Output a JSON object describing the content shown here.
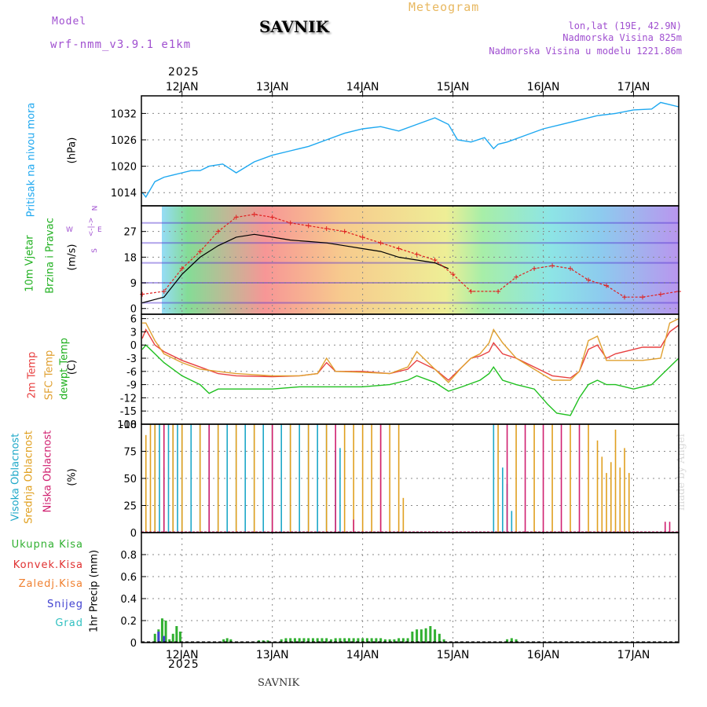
{
  "header": {
    "model_label": "Model",
    "model_name": "wrf-nmm_v3.9.1 e1km",
    "title": "SAVNIK",
    "meteogram_label": "Meteogram",
    "coords": "lon,lat (19E, 42.9N)",
    "elevation": "Nadmorska Visina 825m",
    "model_elevation": "Nadmorska Visina u modelu 1221.86m",
    "year_top": "2025",
    "year_bottom": "2025",
    "footer_title": "SAVNIK",
    "credit": "made by Angel"
  },
  "colors": {
    "pressure": "#1ea8f0",
    "temp2m": "#e84040",
    "sfc_temp": "#e0a030",
    "dewpoint": "#20c020",
    "wind_gust": "#e02020",
    "wind_speed": "#000000",
    "cloud_high": "#1ea8c8",
    "cloud_mid": "#e0a020",
    "cloud_low": "#d02070",
    "precip_total": "#30b030",
    "precip_conv": "#e03030",
    "precip_frz": "#f08030",
    "precip_snow": "#4040d0",
    "precip_grad": "#30c0c0"
  },
  "labels": {
    "pressure": {
      "name": "Pritisak na nivou mora",
      "unit": "(hPa)"
    },
    "wind": {
      "name1": "10m Vjetar",
      "name2": "Brzina i Pravac",
      "unit": "(m/s)",
      "compass_w": "W",
      "compass_n": "N",
      "compass_s": "S",
      "compass_e": "E",
      "compass_arrow": "<-|->"
    },
    "temp": {
      "name1": "2m Temp",
      "name2": "SFC Temp",
      "name3": "dewpt Temp",
      "unit": "(C)"
    },
    "cloud": {
      "name1": "Visoka Oblacnost",
      "name2": "Srednja Oblacnost",
      "name3": "Niska Oblacnost",
      "unit": "(%)"
    },
    "precip": {
      "total": "Ukupna Kisa",
      "conv": "Konvek.Kisa",
      "frz": "Zaledj.Kisa",
      "snow": "Snijeg",
      "grad": "Grad",
      "unit": "1hr Precip (mm)"
    }
  },
  "chart_data": [
    {
      "type": "line",
      "panel": "pressure",
      "title": "",
      "xlabel": "",
      "ylabel": "(hPa)",
      "x_ticks": [
        "12JAN",
        "13JAN",
        "14JAN",
        "15JAN",
        "16JAN",
        "17JAN"
      ],
      "x_range_days": [
        11.55,
        17.5
      ],
      "ylim": [
        1011,
        1036
      ],
      "y_ticks": [
        1014,
        1020,
        1026,
        1032
      ],
      "grid": true,
      "series": [
        {
          "name": "Pritisak na nivou mora",
          "x": [
            11.56,
            11.6,
            11.7,
            11.8,
            11.9,
            12.0,
            12.1,
            12.2,
            12.3,
            12.45,
            12.6,
            12.8,
            13.0,
            13.2,
            13.4,
            13.6,
            13.8,
            14.0,
            14.2,
            14.4,
            14.6,
            14.8,
            14.95,
            15.05,
            15.2,
            15.35,
            15.45,
            15.5,
            15.6,
            15.8,
            16.0,
            16.2,
            16.4,
            16.6,
            16.8,
            17.0,
            17.2,
            17.3,
            17.4,
            17.5
          ],
          "values": [
            1014,
            1013,
            1016.5,
            1017.5,
            1018,
            1018.5,
            1019,
            1019,
            1020,
            1020.5,
            1018.5,
            1021,
            1022.5,
            1023.5,
            1024.5,
            1026,
            1027.5,
            1028.5,
            1029,
            1028,
            1029.5,
            1031,
            1029.5,
            1026,
            1025.5,
            1026.5,
            1024,
            1025,
            1025.5,
            1027,
            1028.5,
            1029.5,
            1030.5,
            1031.5,
            1032,
            1032.8,
            1033,
            1034.5,
            1034,
            1033.5
          ]
        }
      ]
    },
    {
      "type": "line",
      "panel": "wind",
      "title": "",
      "xlabel": "",
      "ylabel": "(m/s)",
      "ylim": [
        -2,
        36
      ],
      "y_ticks": [
        0,
        9,
        18,
        27
      ],
      "grid": true,
      "series": [
        {
          "name": "wind-speed",
          "x": [
            11.56,
            11.8,
            12.0,
            12.2,
            12.4,
            12.6,
            12.8,
            13.0,
            13.2,
            13.4,
            13.6,
            13.8,
            14.0,
            14.2,
            14.4,
            14.6,
            14.8,
            14.95
          ],
          "values": [
            2,
            4,
            12,
            18,
            22,
            25,
            26,
            25,
            24,
            23.5,
            23,
            22,
            21,
            20,
            18,
            17,
            16,
            14
          ]
        },
        {
          "name": "wind-gust",
          "x": [
            11.56,
            11.8,
            12.0,
            12.2,
            12.4,
            12.6,
            12.8,
            13.0,
            13.2,
            13.4,
            13.6,
            13.8,
            14.0,
            14.2,
            14.4,
            14.6,
            14.8,
            15.0,
            15.2,
            15.5,
            15.7,
            15.9,
            16.1,
            16.3,
            16.5,
            16.7,
            16.9,
            17.1,
            17.3,
            17.5
          ],
          "values": [
            5,
            6,
            14,
            20,
            27,
            32,
            33,
            32,
            30,
            29,
            28,
            27,
            25,
            23,
            21,
            19,
            17,
            12,
            6,
            6,
            11,
            14,
            15,
            14,
            10,
            8,
            4,
            4,
            5,
            6
          ]
        }
      ]
    },
    {
      "type": "line",
      "panel": "temperature",
      "title": "",
      "xlabel": "",
      "ylabel": "(C)",
      "ylim": [
        -18,
        7
      ],
      "y_ticks": [
        -18,
        -15,
        -12,
        -9,
        -6,
        -3,
        0,
        3,
        6
      ],
      "grid": true,
      "series": [
        {
          "name": "2m Temp",
          "x": [
            11.56,
            11.6,
            11.7,
            11.8,
            12.0,
            12.2,
            12.4,
            12.6,
            13.0,
            13.3,
            13.5,
            13.6,
            13.7,
            14.0,
            14.3,
            14.5,
            14.6,
            14.8,
            14.95,
            15.1,
            15.2,
            15.3,
            15.4,
            15.45,
            15.55,
            15.7,
            15.9,
            16.1,
            16.3,
            16.4,
            16.5,
            16.6,
            16.7,
            16.8,
            17.0,
            17.1,
            17.3,
            17.4,
            17.5
          ],
          "values": [
            1.5,
            3.5,
            0,
            -1.5,
            -3.5,
            -5,
            -6.5,
            -7,
            -7.2,
            -7,
            -6.5,
            -4,
            -6,
            -6,
            -6.5,
            -5.5,
            -3.5,
            -5.5,
            -8,
            -5,
            -3,
            -2.5,
            -1.5,
            0.5,
            -2,
            -3,
            -5,
            -7,
            -7.5,
            -6,
            -1,
            0,
            -3,
            -2,
            -1,
            -0.5,
            -0.5,
            3,
            4.5
          ]
        },
        {
          "name": "SFC Temp",
          "x": [
            11.56,
            11.6,
            11.7,
            11.8,
            12.0,
            12.2,
            12.4,
            12.6,
            13.0,
            13.3,
            13.5,
            13.6,
            13.7,
            14.0,
            14.3,
            14.5,
            14.6,
            14.8,
            14.95,
            15.1,
            15.2,
            15.3,
            15.4,
            15.45,
            15.55,
            15.7,
            15.9,
            16.1,
            16.3,
            16.4,
            16.5,
            16.6,
            16.7,
            16.8,
            17.0,
            17.1,
            17.3,
            17.4,
            17.5
          ],
          "values": [
            5,
            5,
            1,
            -2,
            -4,
            -5.5,
            -6,
            -6.5,
            -7,
            -7,
            -6.5,
            -3,
            -6,
            -6.2,
            -6.5,
            -5,
            -1.5,
            -5.5,
            -8.5,
            -5,
            -3,
            -2,
            0.5,
            3.5,
            0.5,
            -3,
            -5.5,
            -8,
            -8,
            -6,
            1,
            2,
            -3.5,
            -3.5,
            -3.5,
            -3.5,
            -3,
            5,
            6
          ]
        },
        {
          "name": "dewpt Temp",
          "x": [
            11.56,
            11.6,
            11.7,
            11.8,
            12.0,
            12.2,
            12.3,
            12.4,
            12.6,
            13.0,
            13.3,
            13.6,
            13.8,
            14.0,
            14.3,
            14.5,
            14.6,
            14.8,
            14.95,
            15.1,
            15.3,
            15.4,
            15.45,
            15.55,
            15.7,
            15.9,
            16.05,
            16.15,
            16.3,
            16.4,
            16.5,
            16.6,
            16.7,
            16.8,
            17.0,
            17.2,
            17.35,
            17.5
          ],
          "values": [
            -1,
            0,
            -2,
            -4,
            -7,
            -9,
            -11,
            -10,
            -10,
            -10,
            -9.5,
            -9.5,
            -9.5,
            -9.5,
            -9,
            -8,
            -7,
            -8.5,
            -10.5,
            -9.5,
            -8,
            -6.5,
            -5,
            -8,
            -9,
            -10,
            -13.5,
            -15.5,
            -16,
            -12,
            -9,
            -8,
            -9,
            -9,
            -10,
            -9,
            -6,
            -3
          ]
        }
      ]
    },
    {
      "type": "bar",
      "panel": "cloud",
      "title": "",
      "xlabel": "",
      "ylabel": "(%)",
      "ylim": [
        0,
        100
      ],
      "y_ticks": [
        0,
        25,
        50,
        75,
        100
      ],
      "grid": true,
      "series": [
        {
          "name": "Visoka Oblacnost",
          "x": [
            11.7,
            11.75,
            11.8,
            11.85,
            11.9,
            11.95,
            12.0,
            12.1,
            12.2,
            12.3,
            12.4,
            12.5,
            12.6,
            12.7,
            12.8,
            12.9,
            13.0,
            13.1,
            13.2,
            13.3,
            13.4,
            13.5,
            13.6,
            13.7,
            13.75,
            15.45,
            15.55,
            15.6,
            15.65
          ],
          "values": [
            100,
            100,
            60,
            100,
            100,
            100,
            100,
            100,
            100,
            100,
            100,
            100,
            100,
            100,
            100,
            100,
            100,
            100,
            100,
            100,
            100,
            100,
            100,
            75,
            78,
            100,
            60,
            45,
            20
          ]
        },
        {
          "name": "Srednja Oblacnost",
          "x": [
            11.6,
            11.65,
            11.7,
            11.8,
            11.9,
            12.0,
            12.2,
            12.4,
            12.6,
            12.8,
            13.0,
            13.2,
            13.4,
            13.6,
            13.8,
            13.9,
            14.0,
            14.1,
            14.2,
            14.3,
            14.4,
            14.45,
            15.5,
            15.7,
            15.9,
            16.1,
            16.3,
            16.5,
            16.6,
            16.65,
            16.7,
            16.75,
            16.8,
            16.85,
            16.9,
            16.95
          ],
          "values": [
            90,
            100,
            100,
            100,
            100,
            100,
            100,
            100,
            100,
            100,
            100,
            100,
            100,
            100,
            100,
            100,
            100,
            100,
            100,
            100,
            100,
            32,
            100,
            100,
            100,
            100,
            100,
            100,
            85,
            70,
            55,
            65,
            95,
            60,
            78,
            55
          ]
        },
        {
          "name": "Niska Oblacnost",
          "x": [
            11.8,
            12.3,
            13.0,
            13.7,
            13.9,
            14.2,
            15.6,
            15.8,
            16.0,
            16.2,
            16.4,
            17.35,
            17.4
          ],
          "values": [
            100,
            100,
            100,
            100,
            12,
            100,
            100,
            100,
            100,
            100,
            100,
            10,
            10
          ]
        }
      ]
    },
    {
      "type": "bar",
      "panel": "precipitation",
      "title": "",
      "xlabel": "",
      "ylabel": "1hr Precip (mm)",
      "ylim": [
        0,
        1
      ],
      "y_ticks": [
        0,
        0.2,
        0.4,
        0.6,
        0.8
      ],
      "grid": true,
      "series": [
        {
          "name": "Ukupna Kisa",
          "x": [
            11.7,
            11.74,
            11.78,
            11.82,
            11.86,
            11.9,
            11.94,
            11.98,
            12.46,
            12.5,
            12.54,
            12.85,
            12.9,
            12.95,
            13.1,
            13.15,
            13.2,
            13.25,
            13.3,
            13.35,
            13.4,
            13.45,
            13.5,
            13.55,
            13.6,
            13.65,
            13.7,
            13.75,
            13.8,
            13.85,
            13.9,
            13.95,
            14.0,
            14.05,
            14.1,
            14.15,
            14.2,
            14.25,
            14.3,
            14.35,
            14.4,
            14.45,
            14.5,
            14.55,
            14.6,
            14.65,
            14.7,
            14.75,
            14.8,
            14.85,
            14.9,
            15.6,
            15.65,
            15.7
          ],
          "values": [
            0.08,
            0.12,
            0.22,
            0.2,
            0.03,
            0.08,
            0.15,
            0.1,
            0.03,
            0.04,
            0.03,
            0.02,
            0.02,
            0.02,
            0.03,
            0.04,
            0.04,
            0.04,
            0.04,
            0.04,
            0.04,
            0.04,
            0.04,
            0.04,
            0.04,
            0.03,
            0.04,
            0.04,
            0.04,
            0.04,
            0.04,
            0.04,
            0.04,
            0.04,
            0.04,
            0.04,
            0.04,
            0.03,
            0.03,
            0.03,
            0.04,
            0.04,
            0.04,
            0.1,
            0.12,
            0.12,
            0.13,
            0.15,
            0.12,
            0.08,
            0.03,
            0.03,
            0.04,
            0.03
          ]
        },
        {
          "name": "Snijeg",
          "x": [
            11.74,
            11.8
          ],
          "values": [
            0.1,
            0.06
          ]
        }
      ]
    }
  ]
}
